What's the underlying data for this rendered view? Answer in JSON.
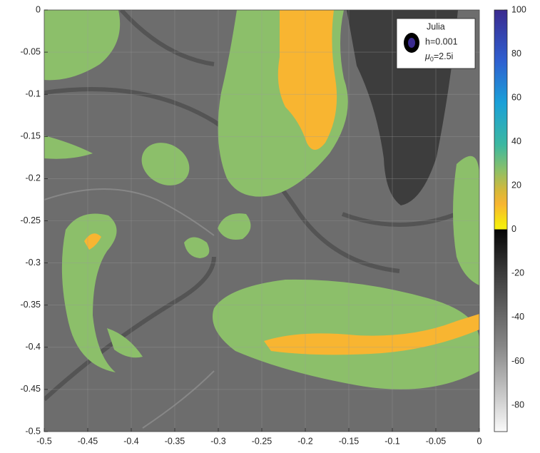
{
  "chart_data": {
    "type": "heatmap",
    "xlim": [
      -0.5,
      0
    ],
    "ylim": [
      -0.5,
      0
    ],
    "xticks": [
      -0.5,
      -0.45,
      -0.4,
      -0.35,
      -0.3,
      -0.25,
      -0.2,
      -0.15,
      -0.1,
      -0.05,
      0
    ],
    "yticks": [
      0,
      -0.05,
      -0.1,
      -0.15,
      -0.2,
      -0.25,
      -0.3,
      -0.35,
      -0.4,
      -0.45,
      -0.5
    ],
    "grid": true,
    "colorbar": {
      "clim": [
        -92,
        100
      ],
      "ticks": [
        100,
        80,
        60,
        40,
        20,
        0,
        -20,
        -40,
        -60,
        -80
      ]
    },
    "legend": {
      "lines": [
        "Julia",
        "h=0.001"
      ],
      "mu": {
        "symbol": "μ",
        "sub": "0",
        "tail": "=2.5i"
      }
    }
  }
}
